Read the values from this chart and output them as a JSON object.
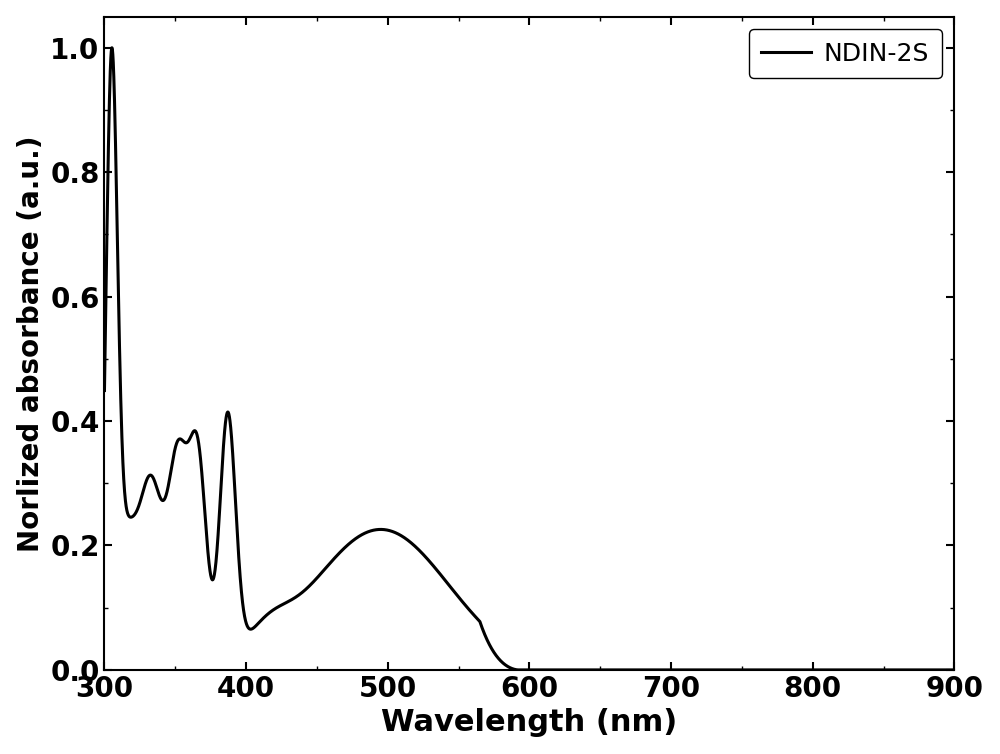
{
  "xlabel": "Wavelength (nm)",
  "ylabel": "Norlized absorbance (a.u.)",
  "legend_label": "NDIN-2S",
  "line_color": "#000000",
  "line_width": 2.2,
  "background_color": "#ffffff",
  "xlim": [
    300,
    900
  ],
  "ylim": [
    0.0,
    1.05
  ],
  "xticks": [
    300,
    400,
    500,
    600,
    700,
    800,
    900
  ],
  "yticks": [
    0.0,
    0.2,
    0.4,
    0.6,
    0.8,
    1.0
  ],
  "xlabel_fontsize": 22,
  "ylabel_fontsize": 20,
  "tick_fontsize": 20,
  "legend_fontsize": 18,
  "figwidth": 10.0,
  "figheight": 7.54
}
